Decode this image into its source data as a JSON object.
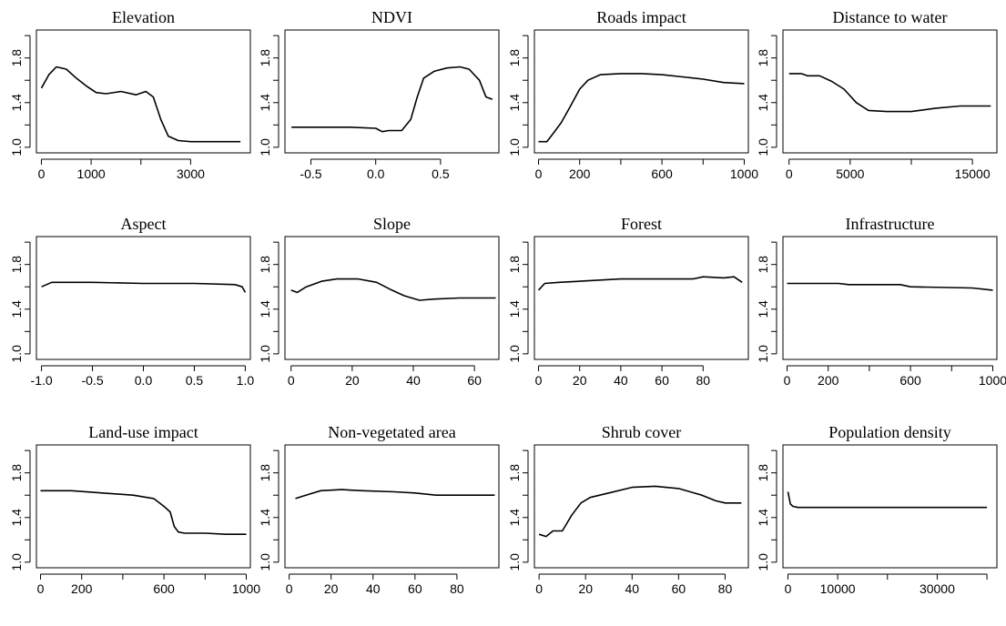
{
  "chart_data": [
    {
      "type": "line",
      "title": "Elevation",
      "xlabel": "",
      "ylabel": "",
      "xlim": [
        -100,
        4200
      ],
      "ylim": [
        0.95,
        2.05
      ],
      "xticks": [
        0,
        1000,
        2000,
        3000
      ],
      "xtick_labels": [
        "0",
        "1000",
        "",
        "3000"
      ],
      "yticks": [
        1.0,
        1.2,
        1.4,
        1.6,
        1.8,
        2.0
      ],
      "ytick_labels": [
        "1.0",
        "",
        "1.4",
        "",
        "1.8",
        ""
      ],
      "x": [
        0,
        150,
        300,
        500,
        700,
        900,
        1100,
        1300,
        1600,
        1900,
        2100,
        2250,
        2400,
        2550,
        2750,
        3000,
        3500,
        4000
      ],
      "y": [
        1.53,
        1.65,
        1.72,
        1.7,
        1.62,
        1.55,
        1.49,
        1.48,
        1.5,
        1.47,
        1.5,
        1.45,
        1.25,
        1.1,
        1.06,
        1.05,
        1.05,
        1.05
      ]
    },
    {
      "type": "line",
      "title": "NDVI",
      "xlabel": "",
      "ylabel": "",
      "xlim": [
        -0.7,
        0.95
      ],
      "ylim": [
        0.95,
        2.05
      ],
      "xticks": [
        -0.5,
        0.0,
        0.5
      ],
      "xtick_labels": [
        "-0.5",
        "0.0",
        "0.5"
      ],
      "yticks": [
        1.0,
        1.2,
        1.4,
        1.6,
        1.8,
        2.0
      ],
      "ytick_labels": [
        "1.0",
        "",
        "1.4",
        "",
        "1.8",
        ""
      ],
      "x": [
        -0.65,
        -0.4,
        -0.2,
        0.0,
        0.05,
        0.1,
        0.2,
        0.27,
        0.32,
        0.37,
        0.45,
        0.55,
        0.65,
        0.72,
        0.8,
        0.85,
        0.9
      ],
      "y": [
        1.18,
        1.18,
        1.18,
        1.17,
        1.14,
        1.15,
        1.15,
        1.25,
        1.45,
        1.62,
        1.68,
        1.71,
        1.72,
        1.7,
        1.6,
        1.45,
        1.43
      ]
    },
    {
      "type": "line",
      "title": "Roads impact",
      "xlabel": "",
      "ylabel": "",
      "xlim": [
        -20,
        1020
      ],
      "ylim": [
        0.95,
        2.05
      ],
      "xticks": [
        0,
        200,
        400,
        600,
        800,
        1000
      ],
      "xtick_labels": [
        "0",
        "200",
        "",
        "600",
        "",
        "1000"
      ],
      "yticks": [
        1.0,
        1.2,
        1.4,
        1.6,
        1.8,
        2.0
      ],
      "ytick_labels": [
        "1.0",
        "",
        "1.4",
        "",
        "1.8",
        ""
      ],
      "x": [
        0,
        40,
        70,
        110,
        150,
        200,
        240,
        300,
        400,
        500,
        600,
        700,
        800,
        900,
        1000
      ],
      "y": [
        1.05,
        1.05,
        1.12,
        1.22,
        1.35,
        1.52,
        1.6,
        1.65,
        1.66,
        1.66,
        1.65,
        1.63,
        1.61,
        1.58,
        1.57
      ]
    },
    {
      "type": "line",
      "title": "Distance to water",
      "xlabel": "",
      "ylabel": "",
      "xlim": [
        -500,
        17000
      ],
      "ylim": [
        0.95,
        2.05
      ],
      "xticks": [
        0,
        5000,
        10000,
        15000
      ],
      "xtick_labels": [
        "0",
        "5000",
        "",
        "15000"
      ],
      "yticks": [
        1.0,
        1.2,
        1.4,
        1.6,
        1.8,
        2.0
      ],
      "ytick_labels": [
        "1.0",
        "",
        "1.4",
        "",
        "1.8",
        ""
      ],
      "x": [
        0,
        1000,
        1500,
        2500,
        3500,
        4500,
        5500,
        6500,
        8000,
        10000,
        12000,
        14000,
        16500
      ],
      "y": [
        1.66,
        1.66,
        1.64,
        1.64,
        1.59,
        1.52,
        1.4,
        1.33,
        1.32,
        1.32,
        1.35,
        1.37,
        1.37
      ]
    },
    {
      "type": "line",
      "title": "Aspect",
      "xlabel": "",
      "ylabel": "",
      "xlim": [
        -1.05,
        1.05
      ],
      "ylim": [
        0.95,
        2.05
      ],
      "xticks": [
        -1.0,
        -0.5,
        0.0,
        0.5,
        1.0
      ],
      "xtick_labels": [
        "-1.0",
        "-0.5",
        "0.0",
        "0.5",
        "1.0"
      ],
      "yticks": [
        1.0,
        1.2,
        1.4,
        1.6,
        1.8,
        2.0
      ],
      "ytick_labels": [
        "1.0",
        "",
        "1.4",
        "",
        "1.8",
        ""
      ],
      "x": [
        -1.0,
        -0.9,
        -0.5,
        0.0,
        0.5,
        0.9,
        0.97,
        1.0
      ],
      "y": [
        1.6,
        1.64,
        1.64,
        1.63,
        1.63,
        1.62,
        1.6,
        1.55
      ]
    },
    {
      "type": "line",
      "title": "Slope",
      "xlabel": "",
      "ylabel": "",
      "xlim": [
        -2,
        68
      ],
      "ylim": [
        0.95,
        2.05
      ],
      "xticks": [
        0,
        20,
        40,
        60
      ],
      "xtick_labels": [
        "0",
        "20",
        "40",
        "60"
      ],
      "yticks": [
        1.0,
        1.2,
        1.4,
        1.6,
        1.8,
        2.0
      ],
      "ytick_labels": [
        "1.0",
        "",
        "1.4",
        "",
        "1.8",
        ""
      ],
      "x": [
        0,
        2,
        5,
        10,
        15,
        22,
        28,
        33,
        37,
        42,
        47,
        55,
        67
      ],
      "y": [
        1.57,
        1.55,
        1.6,
        1.65,
        1.67,
        1.67,
        1.64,
        1.57,
        1.52,
        1.48,
        1.49,
        1.5,
        1.5
      ]
    },
    {
      "type": "line",
      "title": "Forest",
      "xlabel": "",
      "ylabel": "",
      "xlim": [
        -2,
        102
      ],
      "ylim": [
        0.95,
        2.05
      ],
      "xticks": [
        0,
        20,
        40,
        60,
        80
      ],
      "xtick_labels": [
        "0",
        "20",
        "40",
        "60",
        "80"
      ],
      "yticks": [
        1.0,
        1.2,
        1.4,
        1.6,
        1.8,
        2.0
      ],
      "ytick_labels": [
        "1.0",
        "",
        "1.4",
        "",
        "1.8",
        ""
      ],
      "x": [
        0,
        3,
        10,
        20,
        40,
        60,
        75,
        80,
        90,
        95,
        99
      ],
      "y": [
        1.57,
        1.63,
        1.64,
        1.65,
        1.67,
        1.67,
        1.67,
        1.69,
        1.68,
        1.69,
        1.64
      ]
    },
    {
      "type": "line",
      "title": "Infrastructure",
      "xlabel": "",
      "ylabel": "",
      "xlim": [
        -20,
        1020
      ],
      "ylim": [
        0.95,
        2.05
      ],
      "xticks": [
        0,
        200,
        400,
        600,
        800,
        1000
      ],
      "xtick_labels": [
        "0",
        "200",
        "",
        "600",
        "",
        "1000"
      ],
      "yticks": [
        1.0,
        1.2,
        1.4,
        1.6,
        1.8,
        2.0
      ],
      "ytick_labels": [
        "1.0",
        "",
        "1.4",
        "",
        "1.8",
        ""
      ],
      "x": [
        0,
        250,
        300,
        550,
        600,
        900,
        1000
      ],
      "y": [
        1.63,
        1.63,
        1.62,
        1.62,
        1.6,
        1.59,
        1.57
      ]
    },
    {
      "type": "line",
      "title": "Land-use impact",
      "xlabel": "",
      "ylabel": "",
      "xlim": [
        -20,
        1020
      ],
      "ylim": [
        0.95,
        2.05
      ],
      "xticks": [
        0,
        200,
        400,
        600,
        800,
        1000
      ],
      "xtick_labels": [
        "0",
        "200",
        "",
        "600",
        "",
        "1000"
      ],
      "yticks": [
        1.0,
        1.2,
        1.4,
        1.6,
        1.8,
        2.0
      ],
      "ytick_labels": [
        "1.0",
        "",
        "1.4",
        "",
        "1.8",
        ""
      ],
      "x": [
        0,
        150,
        300,
        450,
        550,
        600,
        630,
        650,
        670,
        700,
        800,
        900,
        1000
      ],
      "y": [
        1.64,
        1.64,
        1.62,
        1.6,
        1.57,
        1.5,
        1.45,
        1.32,
        1.27,
        1.26,
        1.26,
        1.25,
        1.25
      ]
    },
    {
      "type": "line",
      "title": "Non-vegetated area",
      "xlabel": "",
      "ylabel": "",
      "xlim": [
        -2,
        100
      ],
      "ylim": [
        0.95,
        2.05
      ],
      "xticks": [
        0,
        20,
        40,
        60,
        80
      ],
      "xtick_labels": [
        "0",
        "20",
        "40",
        "60",
        "80"
      ],
      "yticks": [
        1.0,
        1.2,
        1.4,
        1.6,
        1.8,
        2.0
      ],
      "ytick_labels": [
        "1.0",
        "",
        "1.4",
        "",
        "1.8",
        ""
      ],
      "x": [
        3,
        8,
        15,
        25,
        35,
        50,
        60,
        70,
        98
      ],
      "y": [
        1.57,
        1.6,
        1.64,
        1.65,
        1.64,
        1.63,
        1.62,
        1.6,
        1.6
      ]
    },
    {
      "type": "line",
      "title": "Shrub cover",
      "xlabel": "",
      "ylabel": "",
      "xlim": [
        -2,
        90
      ],
      "ylim": [
        0.95,
        2.05
      ],
      "xticks": [
        0,
        20,
        40,
        60,
        80
      ],
      "xtick_labels": [
        "0",
        "20",
        "40",
        "60",
        "80"
      ],
      "yticks": [
        1.0,
        1.2,
        1.4,
        1.6,
        1.8,
        2.0
      ],
      "ytick_labels": [
        "1.0",
        "",
        "1.4",
        "",
        "1.8",
        ""
      ],
      "x": [
        0,
        3,
        6,
        10,
        14,
        18,
        22,
        30,
        40,
        50,
        60,
        70,
        76,
        80,
        87
      ],
      "y": [
        1.25,
        1.23,
        1.28,
        1.28,
        1.42,
        1.53,
        1.58,
        1.62,
        1.67,
        1.68,
        1.66,
        1.6,
        1.55,
        1.53,
        1.53
      ]
    },
    {
      "type": "line",
      "title": "Population density",
      "xlabel": "",
      "ylabel": "",
      "xlim": [
        -1000,
        42000
      ],
      "ylim": [
        0.95,
        2.05
      ],
      "xticks": [
        0,
        10000,
        20000,
        30000,
        40000
      ],
      "xtick_labels": [
        "0",
        "10000",
        "",
        "30000",
        ""
      ],
      "yticks": [
        1.0,
        1.2,
        1.4,
        1.6,
        1.8,
        2.0
      ],
      "ytick_labels": [
        "1.0",
        "",
        "1.4",
        "",
        "1.8",
        ""
      ],
      "x": [
        0,
        500,
        1000,
        2000,
        10000,
        40000
      ],
      "y": [
        1.63,
        1.52,
        1.5,
        1.49,
        1.49,
        1.49
      ]
    }
  ]
}
